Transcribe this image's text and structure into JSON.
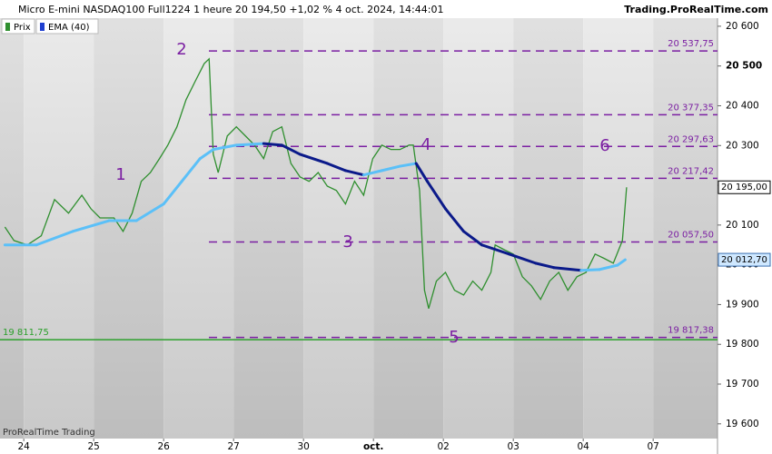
{
  "chart_data": {
    "type": "line",
    "title": "Micro E-mini NASDAQ100 Full1224 1 heure 20 194,50 +1,02 % 4 oct. 2024, 14:44:01",
    "source": "Trading.ProRealTime.com",
    "watermark": "ProRealTime Trading",
    "xlim": [
      -0.34,
      9.92
    ],
    "ylim": [
      19563,
      20666
    ],
    "xticks": [
      {
        "value": 0,
        "label": "24"
      },
      {
        "value": 1,
        "label": "25"
      },
      {
        "value": 2,
        "label": "26"
      },
      {
        "value": 3,
        "label": "27"
      },
      {
        "value": 4,
        "label": "30"
      },
      {
        "value": 5,
        "label": "oct."
      },
      {
        "value": 6,
        "label": "02"
      },
      {
        "value": 7,
        "label": "03"
      },
      {
        "value": 8,
        "label": "04"
      },
      {
        "value": 9,
        "label": "07"
      }
    ],
    "yticks": [
      {
        "value": 20600,
        "label": "20 600"
      },
      {
        "value": 20500,
        "label": "20 500"
      },
      {
        "value": 20400,
        "label": "20 400"
      },
      {
        "value": 20300,
        "label": "20 300"
      },
      {
        "value": 20200,
        "label": "20 200"
      },
      {
        "value": 20100,
        "label": "20 100"
      },
      {
        "value": 20000,
        "label": "20 000"
      },
      {
        "value": 19900,
        "label": "19 900"
      },
      {
        "value": 19800,
        "label": "19 800"
      },
      {
        "value": 19700,
        "label": "19 700"
      },
      {
        "value": 19600,
        "label": "19 600"
      }
    ],
    "series": [
      {
        "name": "Prix",
        "color": "#2f8f2f",
        "x": [
          -0.27,
          -0.14,
          0.05,
          0.25,
          0.44,
          0.64,
          0.83,
          0.96,
          1.09,
          1.29,
          1.42,
          1.55,
          1.68,
          1.81,
          1.94,
          2.06,
          2.19,
          2.32,
          2.45,
          2.58,
          2.65,
          2.71,
          2.78,
          2.91,
          3.04,
          3.17,
          3.3,
          3.43,
          3.56,
          3.69,
          3.82,
          3.95,
          4.08,
          4.21,
          4.34,
          4.47,
          4.6,
          4.73,
          4.86,
          4.99,
          5.12,
          5.25,
          5.38,
          5.51,
          5.57,
          5.66,
          5.73,
          5.79,
          5.9,
          6.03,
          6.16,
          6.29,
          6.42,
          6.55,
          6.68,
          6.74,
          6.87,
          7.0,
          7.13,
          7.26,
          7.39,
          7.52,
          7.65,
          7.78,
          7.91,
          8.04,
          8.17,
          8.3,
          8.43,
          8.56,
          8.62
        ],
        "values": [
          20095,
          20061,
          20050,
          20073,
          20164,
          20130,
          20175,
          20141,
          20118,
          20118,
          20084,
          20130,
          20210,
          20232,
          20267,
          20301,
          20347,
          20415,
          20461,
          20506,
          20518,
          20278,
          20232,
          20324,
          20347,
          20324,
          20301,
          20267,
          20335,
          20347,
          20255,
          20221,
          20210,
          20232,
          20198,
          20187,
          20153,
          20210,
          20175,
          20267,
          20301,
          20290,
          20290,
          20301,
          20301,
          20187,
          19936,
          19890,
          19959,
          19981,
          19936,
          19924,
          19959,
          19936,
          19981,
          20050,
          20038,
          20027,
          19970,
          19947,
          19913,
          19959,
          19981,
          19936,
          19970,
          19981,
          20027,
          20016,
          20004,
          20061,
          20195
        ]
      },
      {
        "name": "EMA (40)",
        "color": "#5bc0f8",
        "falling_color": "#0b1a8a",
        "x": [
          -0.27,
          0.18,
          0.7,
          1.22,
          1.61,
          2.0,
          2.26,
          2.52,
          2.71,
          3.04,
          3.43,
          3.69,
          3.95,
          4.34,
          4.6,
          4.86,
          5.12,
          5.38,
          5.61,
          5.77,
          6.03,
          6.29,
          6.55,
          6.94,
          7.32,
          7.58,
          7.97,
          8.23,
          8.49,
          8.6
        ],
        "values": [
          20050,
          20050,
          20084,
          20111,
          20111,
          20153,
          20210,
          20267,
          20290,
          20301,
          20305,
          20301,
          20278,
          20255,
          20237,
          20226,
          20237,
          20248,
          20255,
          20210,
          20141,
          20084,
          20050,
          20027,
          20004,
          19993,
          19986,
          19988,
          19999,
          20012.7
        ]
      }
    ],
    "level_color": "#7b1fa2",
    "levels": [
      {
        "value": 20537.75,
        "label": "20 537,75"
      },
      {
        "value": 20377.35,
        "label": "20 377,35"
      },
      {
        "value": 20297.63,
        "label": "20 297,63"
      },
      {
        "value": 20217.42,
        "label": "20 217,42"
      },
      {
        "value": 20057.5,
        "label": "20 057,50"
      },
      {
        "value": 19817.38,
        "label": "19 817,38"
      }
    ],
    "support": {
      "value": 19811.75,
      "label": "19 811,75",
      "color": "#2ca02c"
    },
    "last_price": {
      "value": 20195,
      "label": "20 195,00"
    },
    "ema_last": {
      "value": 20012.7,
      "label": "20 012,70"
    },
    "annotations": [
      "1",
      "2",
      "3",
      "4",
      "5",
      "6"
    ]
  }
}
